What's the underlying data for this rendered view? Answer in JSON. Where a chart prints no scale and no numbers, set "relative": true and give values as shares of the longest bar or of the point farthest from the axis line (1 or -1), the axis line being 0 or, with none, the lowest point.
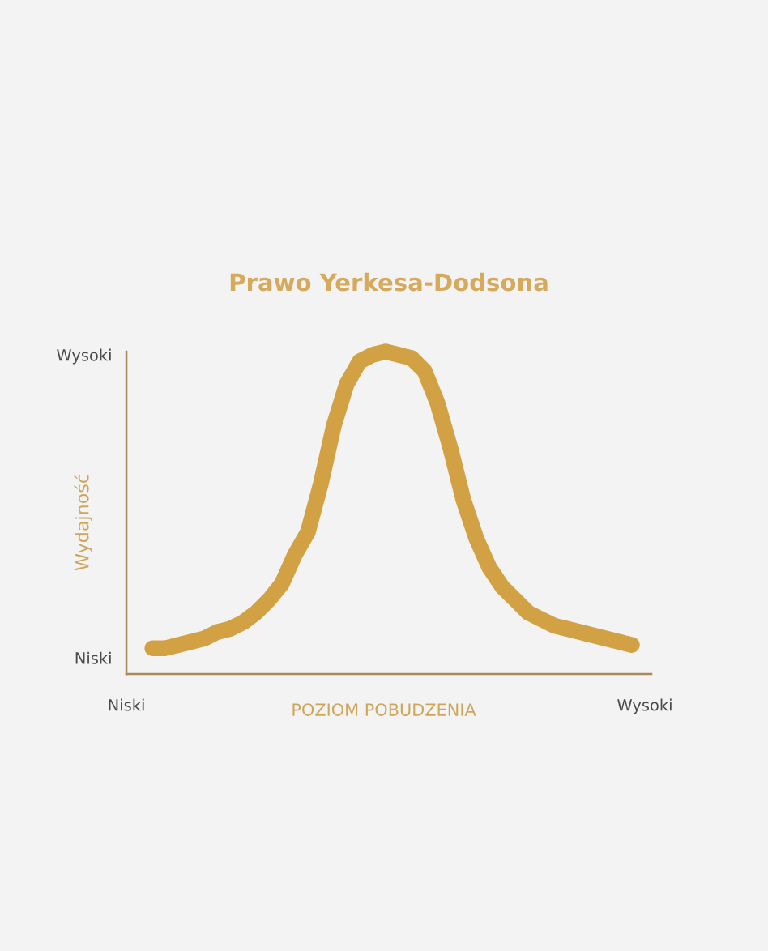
{
  "chart_data": {
    "type": "line",
    "relative": true,
    "title": "Prawo Yerkesa-Dodsona",
    "xlabel": "POZIOM POBUDZENIA",
    "ylabel": "Wydajność",
    "categories": [
      "Niski",
      null,
      null,
      null,
      null,
      null,
      null,
      null,
      null,
      null,
      null,
      null,
      null,
      null,
      null,
      null,
      null,
      null,
      null,
      null,
      null,
      null,
      null,
      null,
      null,
      null,
      null,
      null,
      null,
      null,
      null,
      null,
      null,
      null,
      null,
      null,
      null,
      null,
      null,
      null,
      "Wysoki"
    ],
    "series": [
      {
        "color": "#d1a144",
        "values": [
          null,
          null,
          0.08,
          0.08,
          0.09,
          0.1,
          0.11,
          0.13,
          0.14,
          0.16,
          0.19,
          0.23,
          0.28,
          0.37,
          0.44,
          0.59,
          0.77,
          0.9,
          0.97,
          0.99,
          1.0,
          0.99,
          0.98,
          0.94,
          0.84,
          0.7,
          0.54,
          0.42,
          0.33,
          0.27,
          0.23,
          0.19,
          0.17,
          0.15,
          0.14,
          0.13,
          0.12,
          0.11,
          0.1,
          0.09,
          null
        ]
      }
    ],
    "annotations": [
      "Wysoki",
      "Niski"
    ],
    "line_style": "solid"
  }
}
